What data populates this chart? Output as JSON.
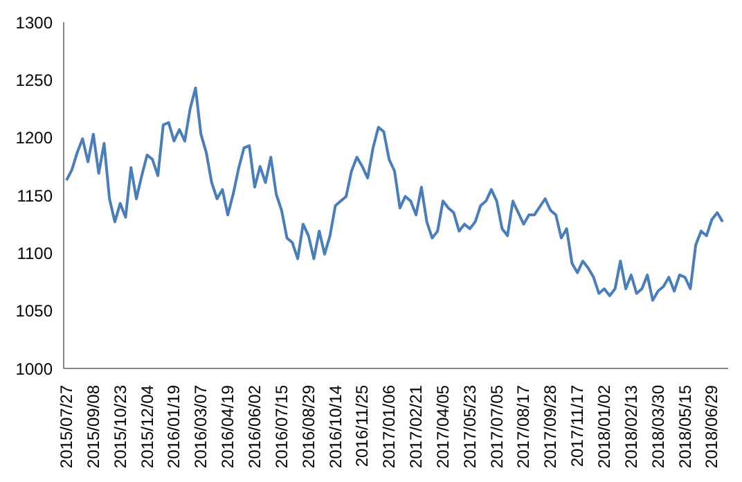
{
  "chart_data": {
    "type": "line",
    "categories": [
      "2015/07/27",
      null,
      null,
      null,
      null,
      "2015/09/08",
      null,
      null,
      null,
      null,
      "2015/10/23",
      null,
      null,
      null,
      null,
      "2015/12/04",
      null,
      null,
      null,
      null,
      "2016/01/19",
      null,
      null,
      null,
      null,
      "2016/03/07",
      null,
      null,
      null,
      null,
      "2016/04/19",
      null,
      null,
      null,
      null,
      "2016/06/02",
      null,
      null,
      null,
      null,
      "2016/07/15",
      null,
      null,
      null,
      null,
      "2016/08/29",
      null,
      null,
      null,
      null,
      "2016/10/14",
      null,
      null,
      null,
      null,
      "2016/11/25",
      null,
      null,
      null,
      null,
      "2017/01/06",
      null,
      null,
      null,
      null,
      "2017/02/21",
      null,
      null,
      null,
      null,
      "2017/04/05",
      null,
      null,
      null,
      null,
      "2017/05/23",
      null,
      null,
      null,
      null,
      "2017/07/05",
      null,
      null,
      null,
      null,
      "2017/08/17",
      null,
      null,
      null,
      null,
      "2017/09/28",
      null,
      null,
      null,
      null,
      "2017/11/17",
      null,
      null,
      null,
      null,
      "2018/01/02",
      null,
      null,
      null,
      null,
      "2018/02/13",
      null,
      null,
      null,
      null,
      "2018/03/30",
      null,
      null,
      null,
      null,
      "2018/05/15",
      null,
      null,
      null,
      null,
      "2018/06/29",
      null,
      null
    ],
    "values": [
      1163,
      1172,
      1187,
      1199,
      1179,
      1203,
      1169,
      1195,
      1147,
      1127,
      1143,
      1131,
      1174,
      1147,
      1167,
      1185,
      1181,
      1167,
      1211,
      1213,
      1197,
      1207,
      1197,
      1225,
      1243,
      1203,
      1187,
      1161,
      1147,
      1155,
      1133,
      1151,
      1173,
      1191,
      1193,
      1157,
      1175,
      1161,
      1183,
      1151,
      1137,
      1113,
      1109,
      1095,
      1125,
      1115,
      1095,
      1119,
      1099,
      1115,
      1141,
      1145,
      1149,
      1171,
      1183,
      1175,
      1165,
      1191,
      1209,
      1205,
      1181,
      1171,
      1139,
      1149,
      1145,
      1133,
      1157,
      1127,
      1113,
      1119,
      1145,
      1139,
      1135,
      1119,
      1125,
      1121,
      1127,
      1141,
      1145,
      1155,
      1145,
      1121,
      1115,
      1145,
      1135,
      1125,
      1133,
      1133,
      1140,
      1147,
      1137,
      1133,
      1113,
      1121,
      1091,
      1083,
      1093,
      1087,
      1079,
      1065,
      1069,
      1063,
      1069,
      1093,
      1069,
      1081,
      1065,
      1069,
      1081,
      1059,
      1067,
      1071,
      1079,
      1067,
      1081,
      1079,
      1069,
      1107,
      1119,
      1115,
      1129,
      1135,
      1127
    ],
    "color": "#4a7ebb",
    "ylim": [
      1000,
      1300
    ],
    "yticks": [
      1000,
      1050,
      1100,
      1150,
      1200,
      1250,
      1300
    ]
  }
}
